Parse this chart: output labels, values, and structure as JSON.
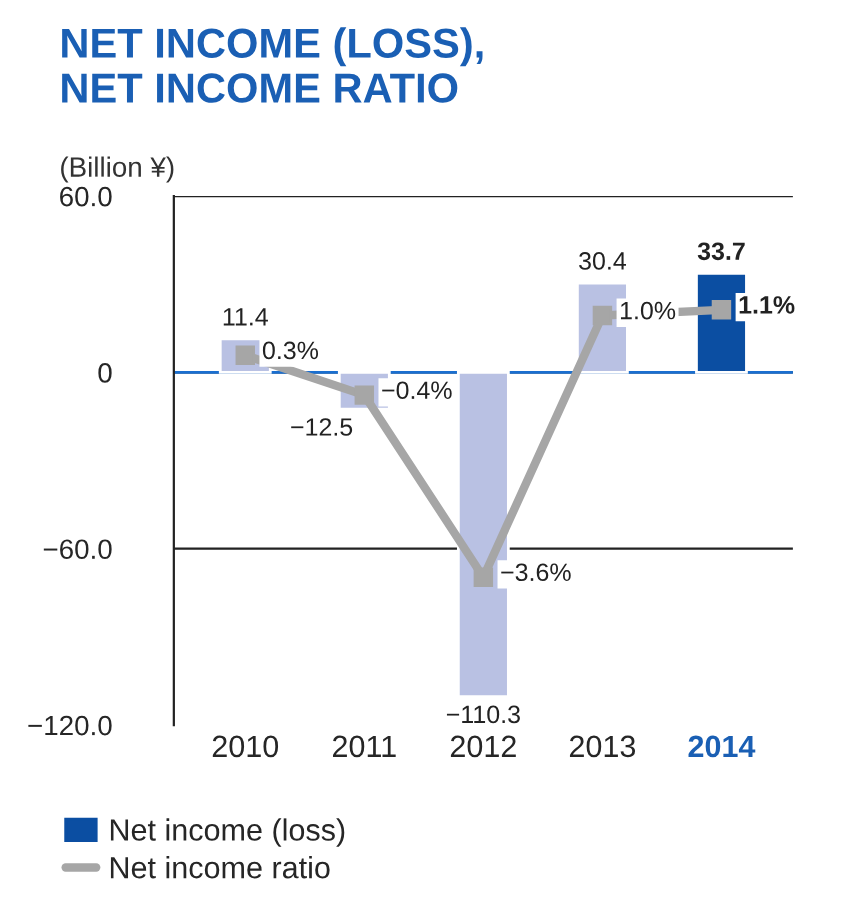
{
  "chart_data": {
    "type": "bar",
    "title": "NET INCOME (LOSS),\nNET INCOME RATIO",
    "ylabel": "(Billion ¥)",
    "categories": [
      "2010",
      "2011",
      "2012",
      "2013",
      "2014"
    ],
    "series": [
      {
        "name": "Net income (loss)",
        "color": "#0b4ea2",
        "colors": [
          "#b9c1e3",
          "#b9c1e3",
          "#b9c1e3",
          "#b9c1e3",
          "#0b4ea2"
        ],
        "values": [
          11.4,
          -12.5,
          -110.3,
          30.4,
          33.7
        ],
        "value_labels": [
          "11.4",
          "−12.5",
          "−110.3",
          "30.4",
          "33.7"
        ]
      },
      {
        "name": "Net income ratio",
        "type": "line",
        "axis": "y2",
        "color": "#a6a6a6",
        "marker": "square",
        "values": [
          0.3,
          -0.4,
          -3.6,
          1.0,
          1.1
        ],
        "value_labels": [
          "0.3%",
          "−0.4%",
          "−3.6%",
          "1.0%",
          "1.1%"
        ]
      }
    ],
    "ylim": [
      -120,
      60
    ],
    "yticks": [
      {
        "value": 60,
        "label": "60.0"
      },
      0,
      {
        "value": -60,
        "label": "−60.0"
      },
      {
        "value": -120,
        "label": "−120.0"
      }
    ],
    "y2lim": [
      -6.2,
      3.1
    ],
    "grid": "y",
    "ref_lines": [
      {
        "axis": "y",
        "value": 0,
        "color": "#1a6fd0"
      }
    ],
    "legend": "bottom",
    "tick_labels": "xy"
  }
}
